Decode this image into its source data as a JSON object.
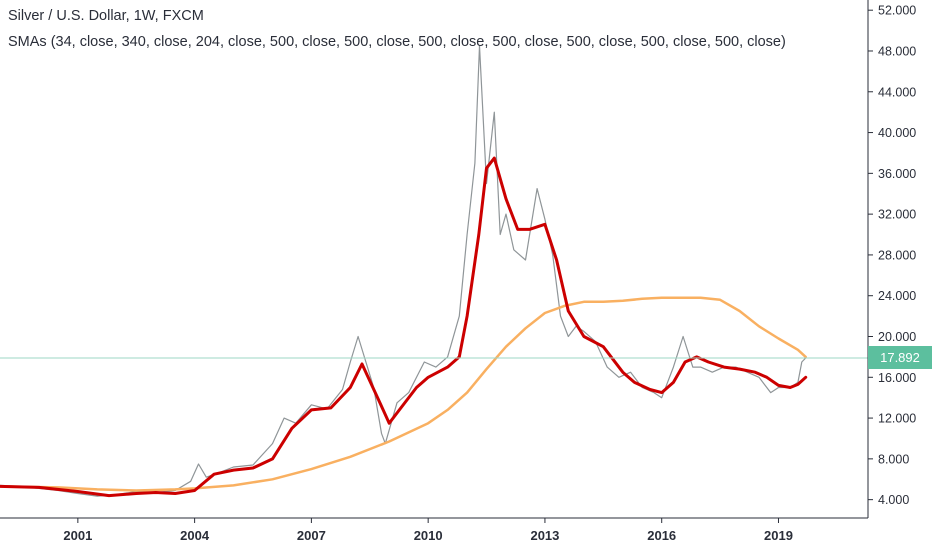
{
  "header": {
    "title": "Silver / U.S. Dollar, 1W, FXCM",
    "indicator": "SMAs (34, close, 340, close, 204, close, 500, close, 500, close, 500, close, 500, close, 500, close, 500, close, 500, close)"
  },
  "current_price": {
    "value": 17.892,
    "label": "17.892"
  },
  "colors": {
    "price": "#8f9598",
    "sma34": "#cc0000",
    "sma340": "#f9b061",
    "last_line": "#9ed7c4",
    "badge": "#5cbf9e",
    "axis": "#2a2e39"
  },
  "chart_data": {
    "type": "line",
    "xlabel": "",
    "ylabel": "",
    "xlim": [
      1999,
      2021.3
    ],
    "ylim": [
      2.2,
      53
    ],
    "x_ticks": [
      "2001",
      "2004",
      "2007",
      "2010",
      "2013",
      "2016",
      "2019"
    ],
    "y_ticks": [
      "4.000",
      "8.000",
      "12.000",
      "16.000",
      "20.000",
      "24.000",
      "28.000",
      "32.000",
      "36.000",
      "40.000",
      "44.000",
      "48.000",
      "52.000"
    ],
    "grid": false,
    "series": [
      {
        "name": "Silver / U.S. Dollar",
        "style": "price",
        "x": [
          1999.0,
          1999.5,
          2000.0,
          2000.5,
          2001.0,
          2001.5,
          2002.0,
          2002.5,
          2003.0,
          2003.5,
          2003.9,
          2004.1,
          2004.3,
          2004.6,
          2005.0,
          2005.5,
          2006.0,
          2006.3,
          2006.6,
          2007.0,
          2007.4,
          2007.8,
          2008.0,
          2008.2,
          2008.6,
          2008.8,
          2008.9,
          2009.2,
          2009.5,
          2009.9,
          2010.2,
          2010.5,
          2010.8,
          2011.0,
          2011.2,
          2011.32,
          2011.5,
          2011.7,
          2011.85,
          2012.0,
          2012.2,
          2012.5,
          2012.8,
          2013.0,
          2013.2,
          2013.4,
          2013.6,
          2013.8,
          2014.0,
          2014.3,
          2014.6,
          2014.9,
          2015.2,
          2015.5,
          2015.8,
          2016.0,
          2016.3,
          2016.55,
          2016.8,
          2017.0,
          2017.3,
          2017.6,
          2017.9,
          2018.2,
          2018.5,
          2018.8,
          2019.0,
          2019.3,
          2019.5,
          2019.6,
          2019.7
        ],
        "y": [
          5.4,
          5.3,
          5.1,
          4.9,
          4.6,
          4.35,
          4.5,
          4.8,
          4.7,
          4.9,
          5.8,
          7.5,
          6.2,
          6.6,
          7.2,
          7.4,
          9.5,
          12.0,
          11.5,
          13.3,
          12.9,
          14.8,
          17.5,
          20.0,
          15.0,
          10.5,
          9.5,
          13.5,
          14.5,
          17.5,
          17.0,
          18.0,
          22.0,
          30.0,
          37.0,
          48.5,
          35.0,
          42.0,
          30.0,
          32.0,
          28.5,
          27.5,
          34.5,
          31.5,
          28.0,
          22.0,
          20.0,
          21.0,
          20.5,
          19.5,
          17.0,
          16.0,
          16.5,
          15.0,
          14.5,
          14.0,
          17.0,
          20.0,
          17.0,
          17.0,
          16.5,
          17.0,
          17.0,
          16.5,
          16.0,
          14.5,
          15.0,
          15.0,
          15.5,
          17.5,
          17.892
        ]
      },
      {
        "name": "SMA 34",
        "style": "sma34",
        "x": [
          1999.0,
          2000.0,
          2001.0,
          2001.8,
          2002.5,
          2003.0,
          2003.5,
          2004.0,
          2004.5,
          2005.0,
          2005.5,
          2006.0,
          2006.5,
          2007.0,
          2007.5,
          2008.0,
          2008.3,
          2008.7,
          2009.0,
          2009.3,
          2009.7,
          2010.0,
          2010.5,
          2010.8,
          2011.0,
          2011.3,
          2011.5,
          2011.7,
          2012.0,
          2012.3,
          2012.6,
          2013.0,
          2013.3,
          2013.6,
          2014.0,
          2014.5,
          2015.0,
          2015.3,
          2015.7,
          2016.0,
          2016.3,
          2016.6,
          2016.9,
          2017.2,
          2017.6,
          2018.0,
          2018.4,
          2018.7,
          2019.0,
          2019.3,
          2019.5,
          2019.7
        ],
        "y": [
          5.3,
          5.2,
          4.8,
          4.4,
          4.6,
          4.7,
          4.6,
          4.9,
          6.5,
          6.9,
          7.1,
          8.0,
          11.0,
          12.8,
          13.0,
          15.0,
          17.3,
          14.0,
          11.5,
          13.0,
          15.0,
          16.0,
          17.0,
          18.0,
          22.0,
          30.0,
          36.5,
          37.5,
          33.5,
          30.5,
          30.5,
          31.0,
          27.5,
          22.5,
          20.0,
          19.0,
          16.5,
          15.5,
          14.8,
          14.5,
          15.5,
          17.5,
          18.0,
          17.5,
          17.0,
          16.8,
          16.5,
          16.0,
          15.2,
          15.0,
          15.3,
          16.0
        ]
      },
      {
        "name": "SMA 340",
        "style": "sma340",
        "x": [
          1999.0,
          2000.5,
          2001.5,
          2002.5,
          2003.5,
          2004.0,
          2005.0,
          2006.0,
          2007.0,
          2008.0,
          2009.0,
          2010.0,
          2010.5,
          2011.0,
          2011.5,
          2012.0,
          2012.5,
          2013.0,
          2013.5,
          2014.0,
          2014.5,
          2015.0,
          2015.5,
          2016.0,
          2016.5,
          2017.0,
          2017.5,
          2018.0,
          2018.5,
          2019.0,
          2019.5,
          2019.7
        ],
        "y": [
          5.3,
          5.2,
          5.0,
          4.9,
          5.0,
          5.1,
          5.4,
          6.0,
          7.0,
          8.2,
          9.7,
          11.5,
          12.8,
          14.5,
          16.8,
          19.0,
          20.8,
          22.3,
          23.0,
          23.4,
          23.4,
          23.5,
          23.7,
          23.8,
          23.8,
          23.8,
          23.6,
          22.5,
          21.0,
          19.8,
          18.7,
          18.0
        ]
      }
    ]
  }
}
